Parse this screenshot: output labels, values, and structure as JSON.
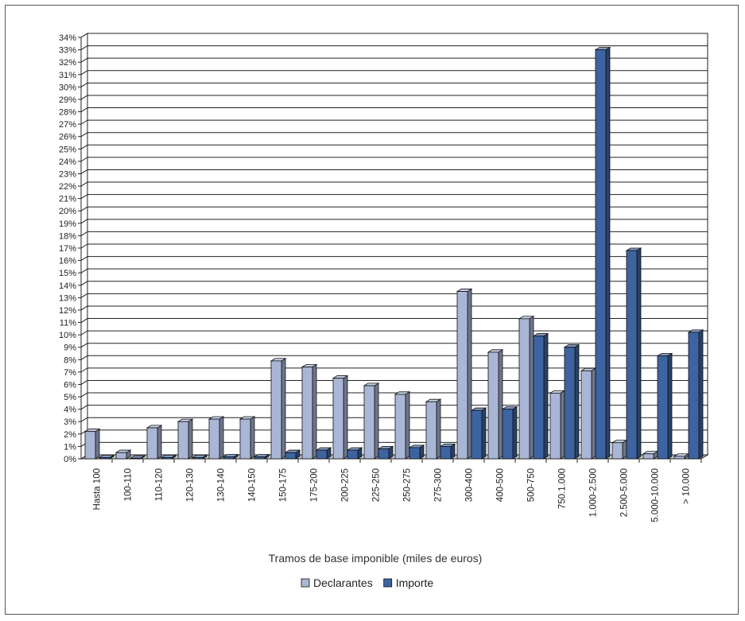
{
  "chart_data": {
    "type": "bar",
    "title": "",
    "xlabel": "Tramos de base imponible (miles de euros)",
    "ylabel": "",
    "ylim": [
      0,
      34
    ],
    "y_tick_step": 1,
    "y_tick_suffix": "%",
    "grid": true,
    "legend_position": "bottom",
    "categories": [
      "Hasta 100",
      "100-110",
      "110-120",
      "120-130",
      "130-140",
      "140-150",
      "150-175",
      "175-200",
      "200-225",
      "225-250",
      "250-275",
      "275-300",
      "300-400",
      "400-500",
      "500-750",
      "750.1.000",
      "1.000-2.500",
      "2.500-5.000",
      "5.000-10.000",
      "> 10.000"
    ],
    "series": [
      {
        "name": "Declarantes",
        "color": "#a9b6d6",
        "values": [
          2.2,
          0.5,
          2.5,
          3.0,
          3.2,
          3.2,
          7.9,
          7.4,
          6.5,
          5.9,
          5.2,
          4.6,
          13.5,
          8.6,
          11.3,
          5.3,
          7.1,
          1.3,
          0.4,
          0.2
        ]
      },
      {
        "name": "Importe",
        "color": "#3d64a0",
        "values": [
          0.1,
          0.05,
          0.1,
          0.1,
          0.15,
          0.15,
          0.5,
          0.7,
          0.7,
          0.8,
          0.9,
          1.0,
          3.9,
          4.0,
          9.9,
          9.0,
          33.0,
          16.8,
          8.3,
          10.2
        ]
      }
    ]
  }
}
